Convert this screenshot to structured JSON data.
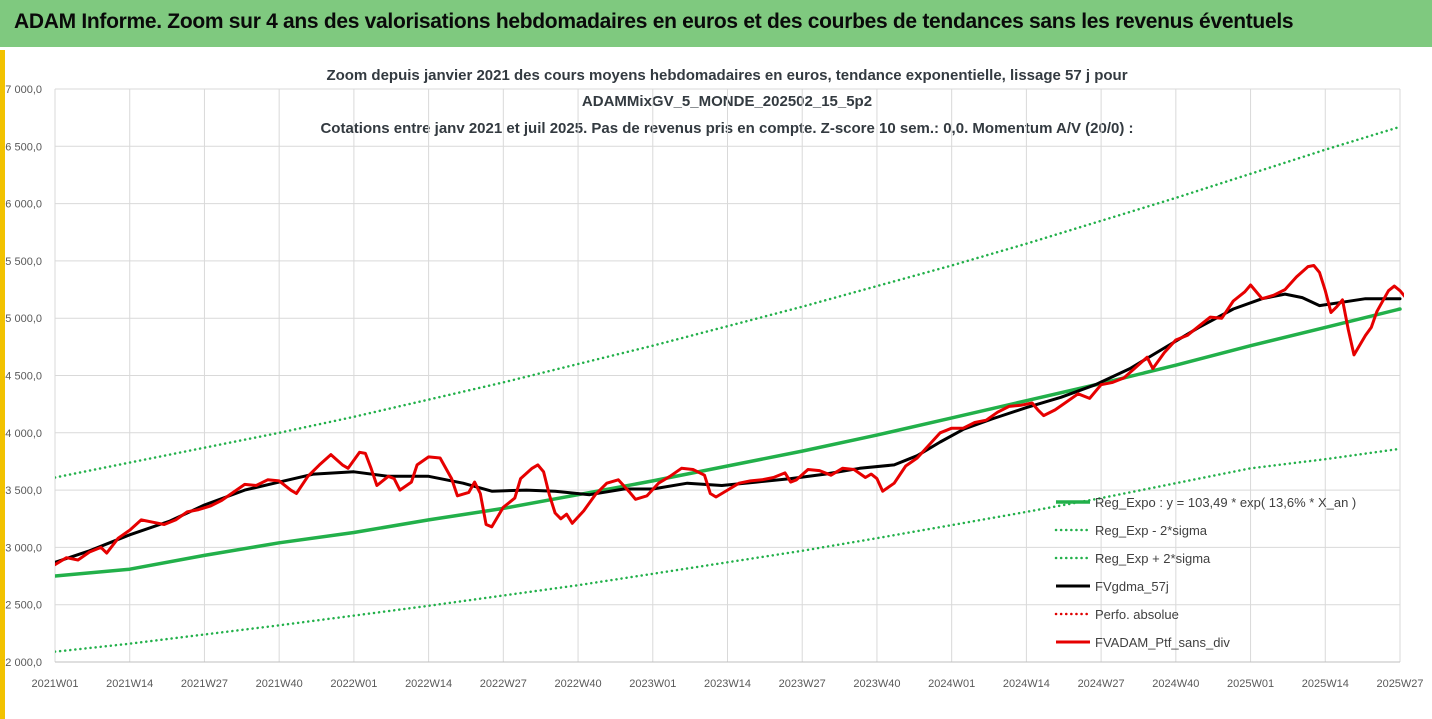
{
  "page": {
    "banner_title": "ADAM Informe. Zoom sur 4 ans des valorisations hebdomadaires en euros et des courbes de tendances sans les revenus éventuels"
  },
  "chart_data": {
    "type": "line",
    "title_lines": [
      "Zoom depuis janvier 2021 des cours moyens hebdomadaires  en euros, tendance exponentielle, lissage 57 j pour",
      "ADAMMixGV_5_MONDE_202502_15_5p2",
      "Cotations entre janv 2021 et juil 2025. Pas de revenus pris en compte. Z-score 10 sem.: 0,0. Momentum A/V (20/0) :"
    ],
    "y_axis": {
      "min": 2000,
      "max": 7000,
      "tick_labels": [
        "2 000,0",
        "2 500,0",
        "3 000,0",
        "3 500,0",
        "4 000,0",
        "4 500,0",
        "5 000,0",
        "5 500,0",
        "6 000,0",
        "6 500,0",
        "7 000,0"
      ]
    },
    "x_axis": {
      "week_min": 0,
      "week_max": 234,
      "ticks": [
        {
          "week": 0,
          "label": "2021W01"
        },
        {
          "week": 13,
          "label": "2021W14"
        },
        {
          "week": 26,
          "label": "2021W27"
        },
        {
          "week": 39,
          "label": "2021W40"
        },
        {
          "week": 52,
          "label": "2022W01"
        },
        {
          "week": 65,
          "label": "2022W14"
        },
        {
          "week": 78,
          "label": "2022W27"
        },
        {
          "week": 91,
          "label": "2022W40"
        },
        {
          "week": 104,
          "label": "2023W01"
        },
        {
          "week": 117,
          "label": "2023W14"
        },
        {
          "week": 130,
          "label": "2023W27"
        },
        {
          "week": 143,
          "label": "2023W40"
        },
        {
          "week": 156,
          "label": "2024W01"
        },
        {
          "week": 169,
          "label": "2024W14"
        },
        {
          "week": 182,
          "label": "2024W27"
        },
        {
          "week": 195,
          "label": "2024W40"
        },
        {
          "week": 208,
          "label": "2025W01"
        },
        {
          "week": 221,
          "label": "2025W14"
        },
        {
          "week": 234,
          "label": "2025W27"
        }
      ]
    },
    "grid": true,
    "legend_position": "bottom-right",
    "series": [
      {
        "name": "Reg_Expo : y = 103,49 * exp( 13,6% *  X_an )",
        "color": "#22b04a",
        "style": "solid",
        "width": 3.5,
        "points": [
          [
            0,
            2750
          ],
          [
            13,
            2810
          ],
          [
            26,
            2930
          ],
          [
            39,
            3040
          ],
          [
            52,
            3130
          ],
          [
            65,
            3240
          ],
          [
            78,
            3340
          ],
          [
            91,
            3460
          ],
          [
            104,
            3580
          ],
          [
            117,
            3710
          ],
          [
            130,
            3840
          ],
          [
            143,
            3980
          ],
          [
            156,
            4130
          ],
          [
            169,
            4280
          ],
          [
            182,
            4430
          ],
          [
            195,
            4590
          ],
          [
            208,
            4760
          ],
          [
            221,
            4920
          ],
          [
            234,
            5080
          ]
        ]
      },
      {
        "name": "Reg_Exp - 2*sigma",
        "color": "#22b04a",
        "style": "dotted",
        "width": 2.5,
        "points": [
          [
            0,
            2090
          ],
          [
            13,
            2160
          ],
          [
            26,
            2240
          ],
          [
            39,
            2320
          ],
          [
            52,
            2405
          ],
          [
            65,
            2490
          ],
          [
            78,
            2580
          ],
          [
            91,
            2670
          ],
          [
            104,
            2770
          ],
          [
            117,
            2870
          ],
          [
            130,
            2970
          ],
          [
            143,
            3080
          ],
          [
            156,
            3195
          ],
          [
            169,
            3310
          ],
          [
            182,
            3430
          ],
          [
            195,
            3560
          ],
          [
            208,
            3690
          ],
          [
            221,
            3770
          ],
          [
            234,
            3860
          ]
        ]
      },
      {
        "name": "Reg_Exp + 2*sigma",
        "color": "#22b04a",
        "style": "dotted",
        "width": 2.5,
        "points": [
          [
            0,
            3610
          ],
          [
            13,
            3740
          ],
          [
            26,
            3870
          ],
          [
            39,
            4000
          ],
          [
            52,
            4140
          ],
          [
            65,
            4290
          ],
          [
            78,
            4440
          ],
          [
            91,
            4600
          ],
          [
            104,
            4760
          ],
          [
            117,
            4930
          ],
          [
            130,
            5100
          ],
          [
            143,
            5280
          ],
          [
            156,
            5460
          ],
          [
            169,
            5650
          ],
          [
            182,
            5850
          ],
          [
            195,
            6050
          ],
          [
            208,
            6260
          ],
          [
            221,
            6470
          ],
          [
            234,
            6670
          ]
        ]
      },
      {
        "name": "FVgdma_57j",
        "color": "#000000",
        "style": "solid",
        "width": 3,
        "points": [
          [
            0,
            2870
          ],
          [
            6,
            2970
          ],
          [
            13,
            3110
          ],
          [
            20,
            3230
          ],
          [
            26,
            3370
          ],
          [
            33,
            3500
          ],
          [
            39,
            3570
          ],
          [
            45,
            3640
          ],
          [
            52,
            3660
          ],
          [
            58,
            3620
          ],
          [
            65,
            3620
          ],
          [
            71,
            3560
          ],
          [
            76,
            3490
          ],
          [
            82,
            3500
          ],
          [
            87,
            3490
          ],
          [
            93,
            3460
          ],
          [
            99,
            3510
          ],
          [
            104,
            3510
          ],
          [
            110,
            3560
          ],
          [
            116,
            3540
          ],
          [
            122,
            3570
          ],
          [
            128,
            3600
          ],
          [
            134,
            3640
          ],
          [
            140,
            3690
          ],
          [
            146,
            3720
          ],
          [
            150,
            3800
          ],
          [
            154,
            3920
          ],
          [
            158,
            4030
          ],
          [
            163,
            4120
          ],
          [
            169,
            4220
          ],
          [
            175,
            4310
          ],
          [
            181,
            4420
          ],
          [
            187,
            4560
          ],
          [
            193,
            4740
          ],
          [
            199,
            4920
          ],
          [
            205,
            5080
          ],
          [
            210,
            5170
          ],
          [
            214,
            5210
          ],
          [
            217,
            5180
          ],
          [
            220,
            5110
          ],
          [
            224,
            5140
          ],
          [
            228,
            5170
          ],
          [
            234,
            5170
          ]
        ]
      },
      {
        "name": "Perfo. absolue",
        "color": "#e00000",
        "style": "dotted",
        "width": 2.5,
        "points": []
      },
      {
        "name": "FVADAM_Ptf_sans_div",
        "color": "#e60000",
        "style": "solid",
        "width": 3,
        "points": [
          [
            0,
            2850
          ],
          [
            2,
            2910
          ],
          [
            4,
            2890
          ],
          [
            6,
            2960
          ],
          [
            8,
            3000
          ],
          [
            9,
            2950
          ],
          [
            11,
            3080
          ],
          [
            13,
            3150
          ],
          [
            15,
            3240
          ],
          [
            17,
            3220
          ],
          [
            19,
            3200
          ],
          [
            21,
            3240
          ],
          [
            23,
            3310
          ],
          [
            25,
            3330
          ],
          [
            27,
            3360
          ],
          [
            29,
            3410
          ],
          [
            31,
            3480
          ],
          [
            33,
            3550
          ],
          [
            35,
            3540
          ],
          [
            37,
            3590
          ],
          [
            39,
            3580
          ],
          [
            41,
            3500
          ],
          [
            42,
            3470
          ],
          [
            44,
            3620
          ],
          [
            46,
            3720
          ],
          [
            48,
            3810
          ],
          [
            50,
            3720
          ],
          [
            51,
            3690
          ],
          [
            53,
            3830
          ],
          [
            54,
            3820
          ],
          [
            55,
            3690
          ],
          [
            56,
            3540
          ],
          [
            58,
            3620
          ],
          [
            59,
            3600
          ],
          [
            60,
            3500
          ],
          [
            62,
            3570
          ],
          [
            63,
            3720
          ],
          [
            65,
            3790
          ],
          [
            67,
            3780
          ],
          [
            69,
            3600
          ],
          [
            70,
            3450
          ],
          [
            72,
            3480
          ],
          [
            73,
            3570
          ],
          [
            74,
            3470
          ],
          [
            75,
            3200
          ],
          [
            76,
            3180
          ],
          [
            78,
            3350
          ],
          [
            80,
            3430
          ],
          [
            81,
            3600
          ],
          [
            83,
            3690
          ],
          [
            84,
            3720
          ],
          [
            85,
            3660
          ],
          [
            86,
            3460
          ],
          [
            87,
            3300
          ],
          [
            88,
            3250
          ],
          [
            89,
            3290
          ],
          [
            90,
            3210
          ],
          [
            92,
            3320
          ],
          [
            94,
            3460
          ],
          [
            96,
            3560
          ],
          [
            98,
            3590
          ],
          [
            100,
            3480
          ],
          [
            101,
            3420
          ],
          [
            103,
            3450
          ],
          [
            105,
            3560
          ],
          [
            107,
            3620
          ],
          [
            109,
            3690
          ],
          [
            111,
            3680
          ],
          [
            113,
            3630
          ],
          [
            114,
            3470
          ],
          [
            115,
            3440
          ],
          [
            117,
            3500
          ],
          [
            119,
            3560
          ],
          [
            121,
            3580
          ],
          [
            123,
            3590
          ],
          [
            125,
            3610
          ],
          [
            127,
            3650
          ],
          [
            128,
            3570
          ],
          [
            129,
            3590
          ],
          [
            131,
            3680
          ],
          [
            133,
            3670
          ],
          [
            135,
            3630
          ],
          [
            137,
            3690
          ],
          [
            139,
            3680
          ],
          [
            141,
            3610
          ],
          [
            142,
            3640
          ],
          [
            143,
            3600
          ],
          [
            144,
            3490
          ],
          [
            146,
            3560
          ],
          [
            148,
            3710
          ],
          [
            150,
            3780
          ],
          [
            152,
            3890
          ],
          [
            154,
            4000
          ],
          [
            156,
            4040
          ],
          [
            158,
            4040
          ],
          [
            160,
            4090
          ],
          [
            162,
            4110
          ],
          [
            164,
            4180
          ],
          [
            166,
            4230
          ],
          [
            168,
            4240
          ],
          [
            170,
            4260
          ],
          [
            171,
            4200
          ],
          [
            172,
            4150
          ],
          [
            174,
            4200
          ],
          [
            176,
            4270
          ],
          [
            178,
            4340
          ],
          [
            180,
            4300
          ],
          [
            182,
            4420
          ],
          [
            184,
            4440
          ],
          [
            186,
            4480
          ],
          [
            188,
            4570
          ],
          [
            190,
            4660
          ],
          [
            191,
            4560
          ],
          [
            193,
            4700
          ],
          [
            195,
            4810
          ],
          [
            197,
            4850
          ],
          [
            199,
            4930
          ],
          [
            201,
            5010
          ],
          [
            203,
            5000
          ],
          [
            205,
            5150
          ],
          [
            207,
            5230
          ],
          [
            208,
            5290
          ],
          [
            210,
            5170
          ],
          [
            212,
            5200
          ],
          [
            214,
            5250
          ],
          [
            216,
            5360
          ],
          [
            218,
            5450
          ],
          [
            219,
            5460
          ],
          [
            220,
            5400
          ],
          [
            221,
            5240
          ],
          [
            222,
            5050
          ],
          [
            223,
            5100
          ],
          [
            224,
            5160
          ],
          [
            225,
            4900
          ],
          [
            226,
            4680
          ],
          [
            228,
            4850
          ],
          [
            229,
            4920
          ],
          [
            230,
            5060
          ],
          [
            232,
            5240
          ],
          [
            233,
            5280
          ],
          [
            234,
            5240
          ],
          [
            235,
            5180
          ],
          [
            236,
            5170
          ],
          [
            237,
            5190
          ]
        ]
      }
    ]
  }
}
